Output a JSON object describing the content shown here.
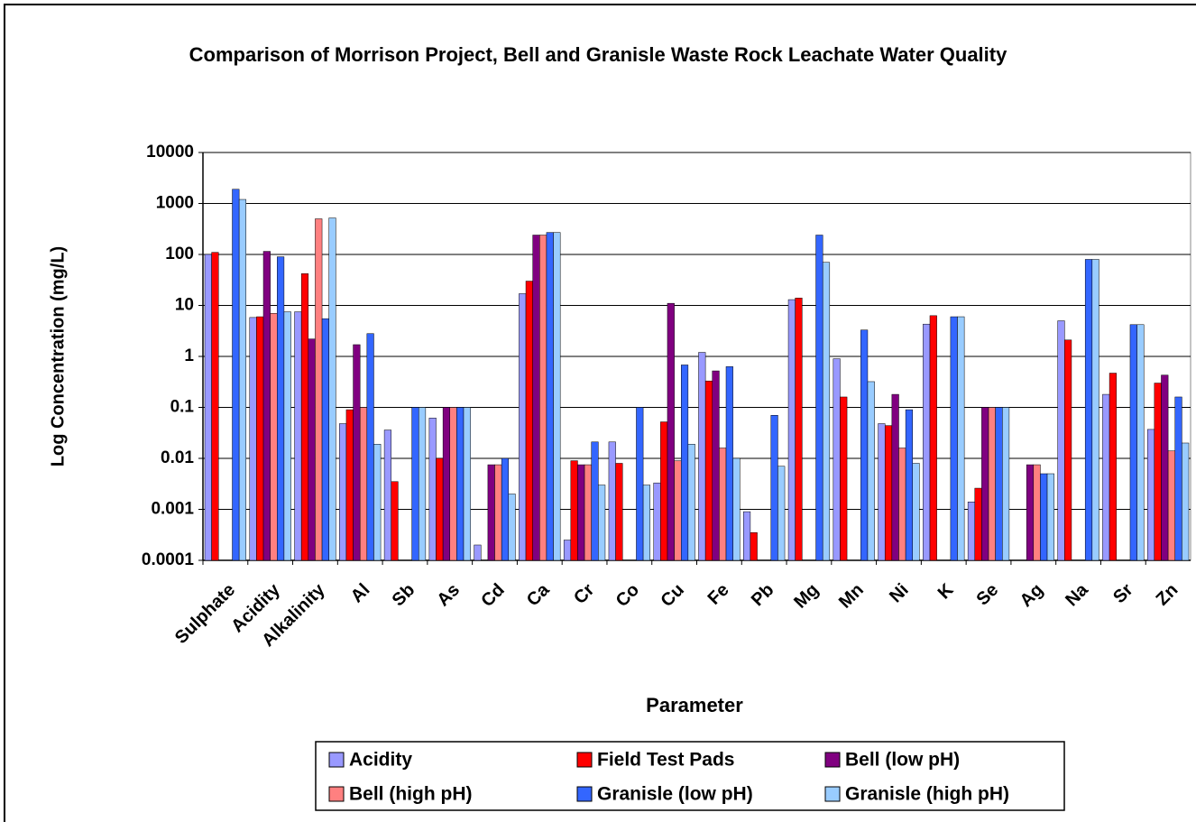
{
  "chart_data": {
    "type": "bar",
    "title": "Comparison of Morrison Project, Bell and Granisle Waste Rock Leachate Water Quality",
    "x_label": "Parameter",
    "y_label": "Log Concentration (mg/L)",
    "log_scale": true,
    "grid": true,
    "legend": "bottom",
    "categories": [
      "Sulphate",
      "Acidity",
      "Alkalinity",
      "Al",
      "Sb",
      "As",
      "Cd",
      "Ca",
      "Cr",
      "Co",
      "Cu",
      "Fe",
      "Pb",
      "Mg",
      "Mn",
      "Ni",
      "K",
      "Se",
      "Ag",
      "Na",
      "Sr",
      "Zn"
    ],
    "series": [
      {
        "name": "Acidity",
        "color": "#9999ff",
        "values": [
          100,
          5.8,
          7.5,
          0.048,
          0.036,
          0.062,
          0.0002,
          17,
          0.00025,
          0.021,
          0.0033,
          1.2,
          0.0009,
          13,
          0.9,
          0.048,
          4.3,
          0.0014,
          null,
          5,
          0.18,
          0.037
        ]
      },
      {
        "name": "Field Test Pads",
        "color": "#ff0000",
        "values": [
          110,
          6,
          42,
          0.09,
          0.0035,
          0.01,
          null,
          30,
          0.009,
          0.008,
          0.052,
          0.33,
          0.00035,
          14,
          0.16,
          0.044,
          6.3,
          0.0026,
          null,
          2.1,
          0.47,
          0.3
        ]
      },
      {
        "name": "Bell (low pH)",
        "color": "#800080",
        "values": [
          null,
          115,
          2.2,
          1.7,
          null,
          0.1,
          0.0075,
          240,
          0.0075,
          null,
          11,
          0.52,
          null,
          null,
          null,
          0.18,
          null,
          0.1,
          0.0075,
          null,
          null,
          0.43
        ]
      },
      {
        "name": "Bell (high pH)",
        "color": "#ff8080",
        "values": [
          null,
          7,
          500,
          0.1,
          null,
          0.1,
          0.0075,
          240,
          0.0075,
          null,
          0.009,
          0.016,
          null,
          null,
          null,
          0.016,
          null,
          0.1,
          0.0075,
          null,
          null,
          0.014
        ]
      },
      {
        "name": "Granisle (low pH)",
        "color": "#3366ff",
        "values": [
          1900,
          90,
          5.5,
          2.8,
          0.1,
          0.1,
          0.01,
          270,
          0.021,
          0.1,
          0.68,
          0.63,
          0.07,
          240,
          3.3,
          0.09,
          6,
          0.1,
          0.005,
          80,
          4.2,
          0.16
        ]
      },
      {
        "name": "Granisle (high pH)",
        "color": "#99ccff",
        "values": [
          1200,
          7.5,
          520,
          0.019,
          0.1,
          0.1,
          0.002,
          270,
          0.003,
          0.003,
          0.019,
          0.01,
          0.007,
          70,
          0.32,
          0.008,
          6,
          0.1,
          0.005,
          80,
          4.2,
          0.02
        ]
      }
    ],
    "ylim": [
      0.0001,
      10000
    ],
    "yticks": [
      0.0001,
      0.001,
      0.01,
      0.1,
      1,
      10,
      100,
      1000,
      10000
    ]
  }
}
